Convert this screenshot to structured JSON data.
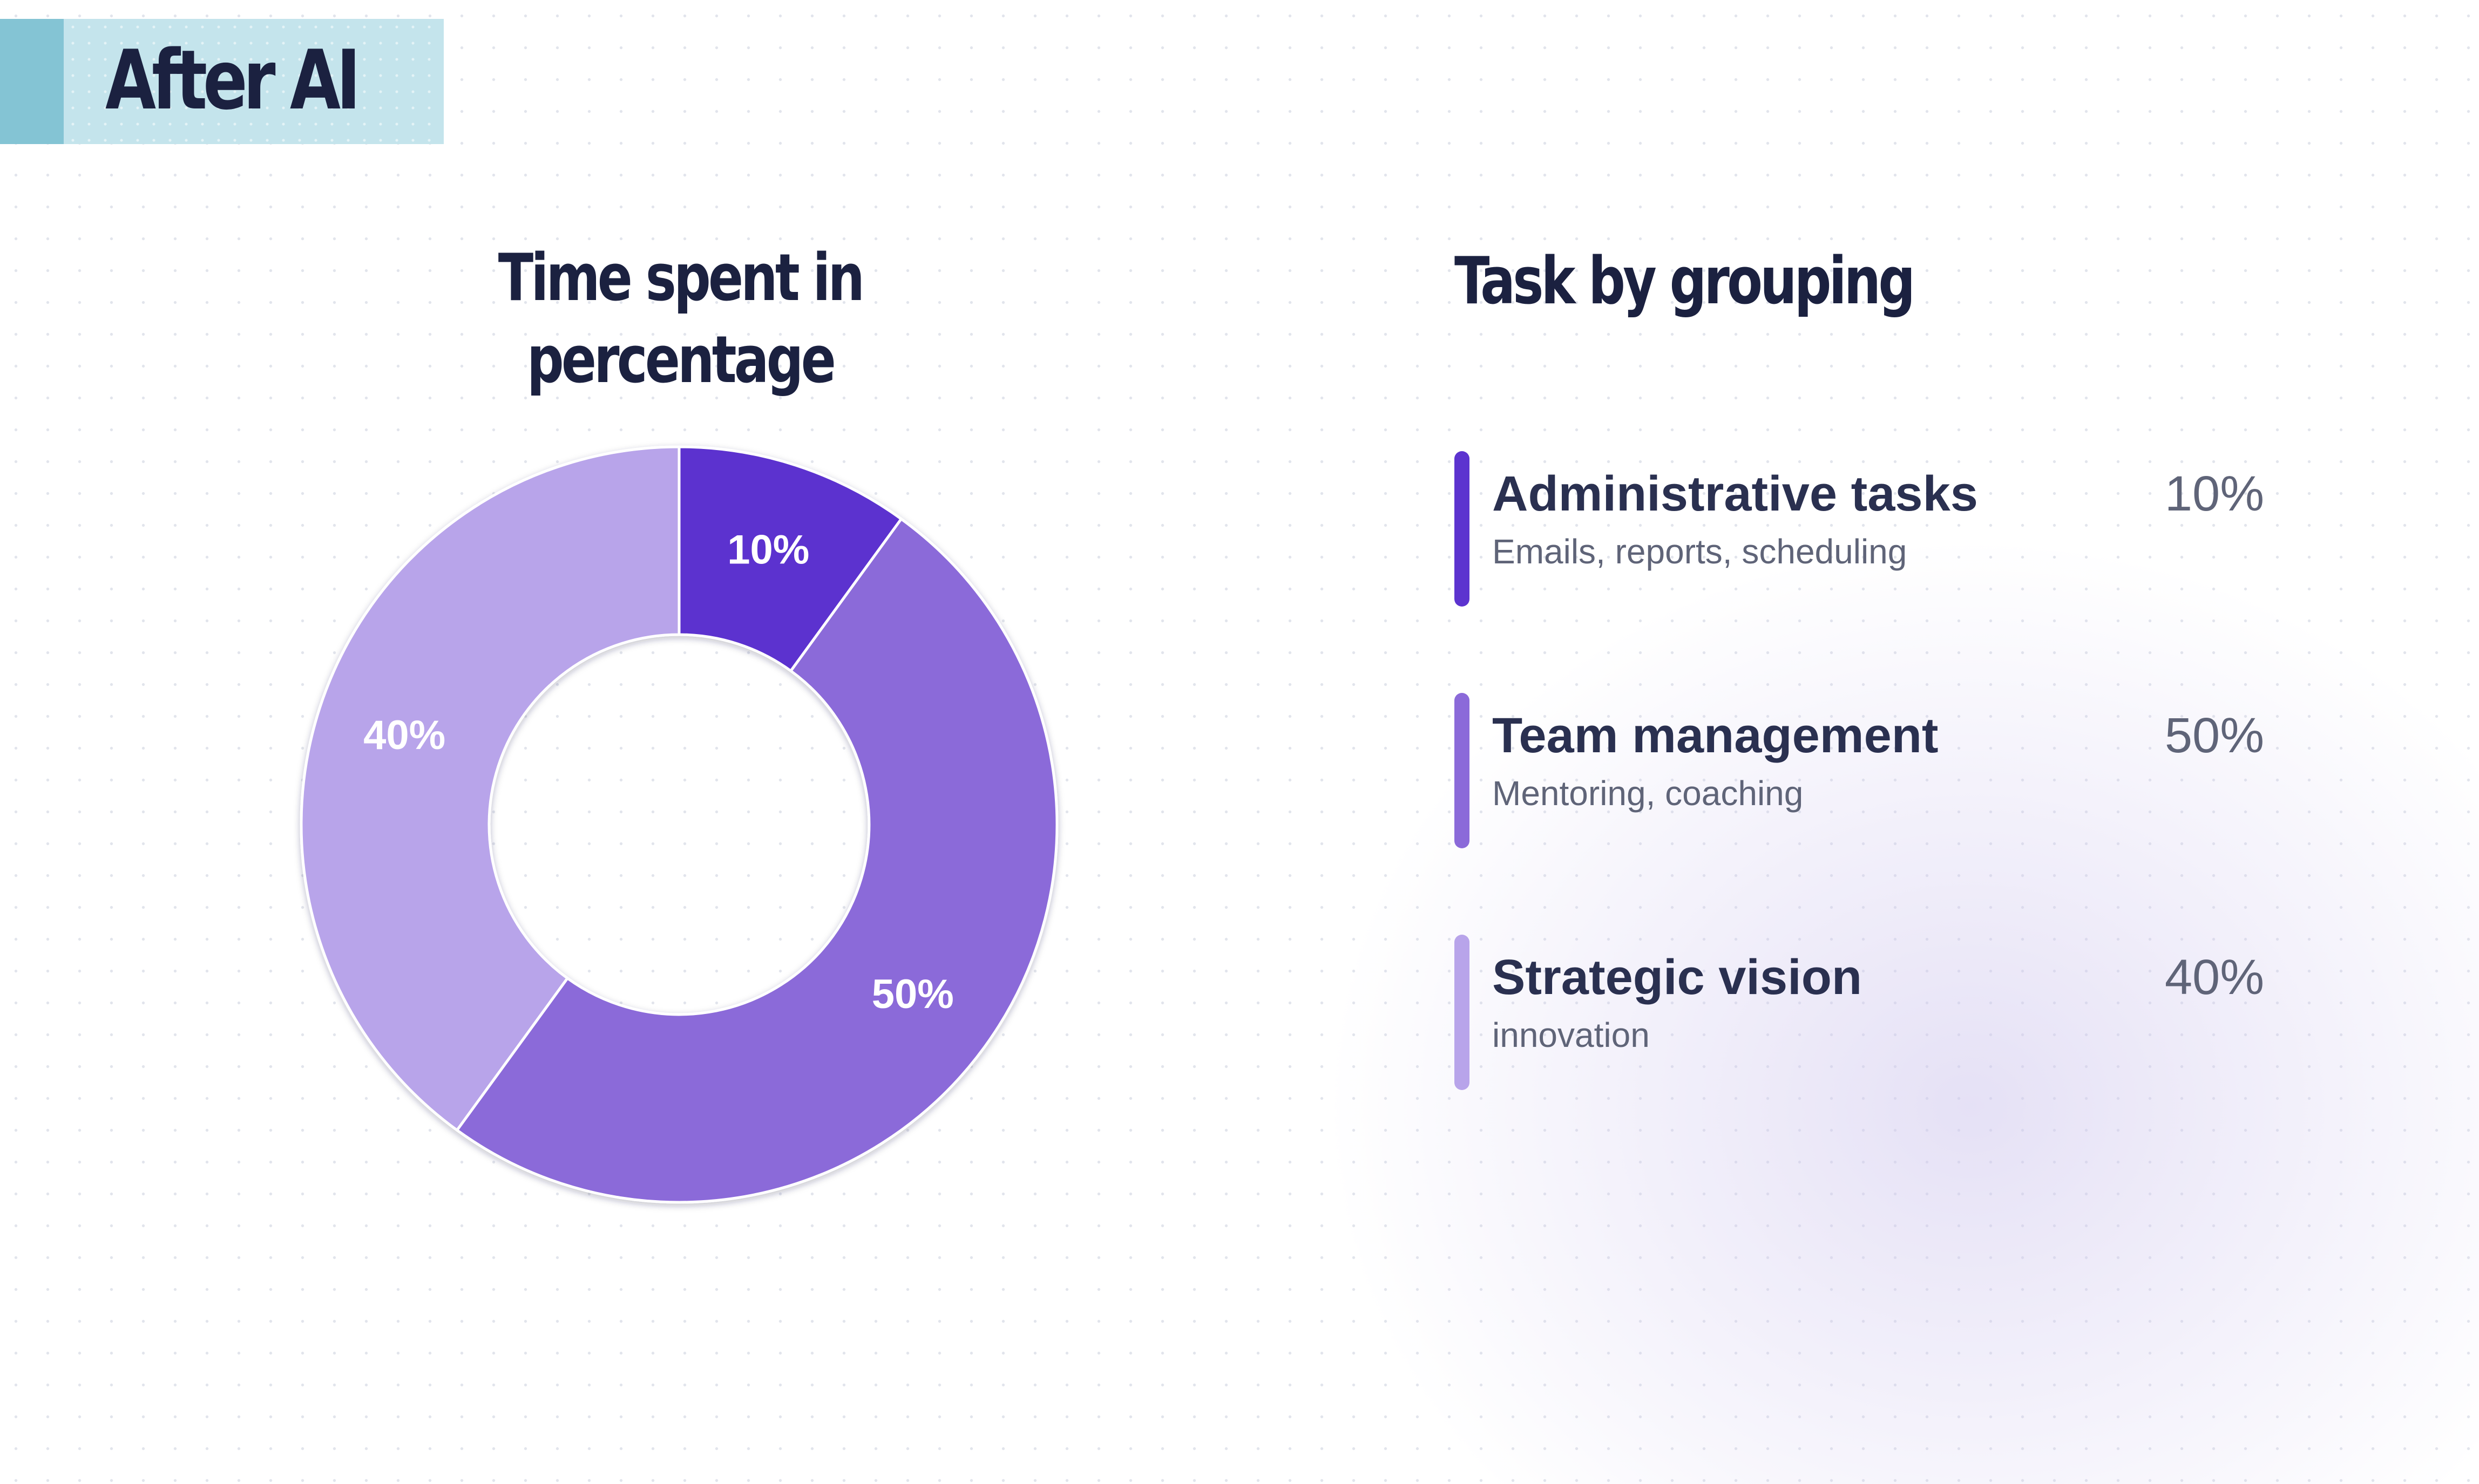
{
  "header": {
    "title": "After AI"
  },
  "legend_panel": {
    "title": "Task by grouping"
  },
  "colors": {
    "administrative": "#5c33cf",
    "team": "#8b6ad9",
    "strategic": "#b8a4ea",
    "text_dark": "#1b2140"
  },
  "chart_data": {
    "type": "pie",
    "variant": "donut",
    "title": "Time spent in percentage",
    "start": "top",
    "direction": "clockwise",
    "slices": [
      {
        "label": "Administrative tasks",
        "description": "Emails, reports, scheduling",
        "value": 10,
        "display": "10%",
        "color": "#5c33cf"
      },
      {
        "label": "Team management",
        "description": "Mentoring, coaching",
        "value": 50,
        "display": "50%",
        "color": "#8b6ad9"
      },
      {
        "label": "Strategic vision",
        "description": "innovation",
        "value": 40,
        "display": "40%",
        "color": "#b8a4ea"
      }
    ]
  }
}
